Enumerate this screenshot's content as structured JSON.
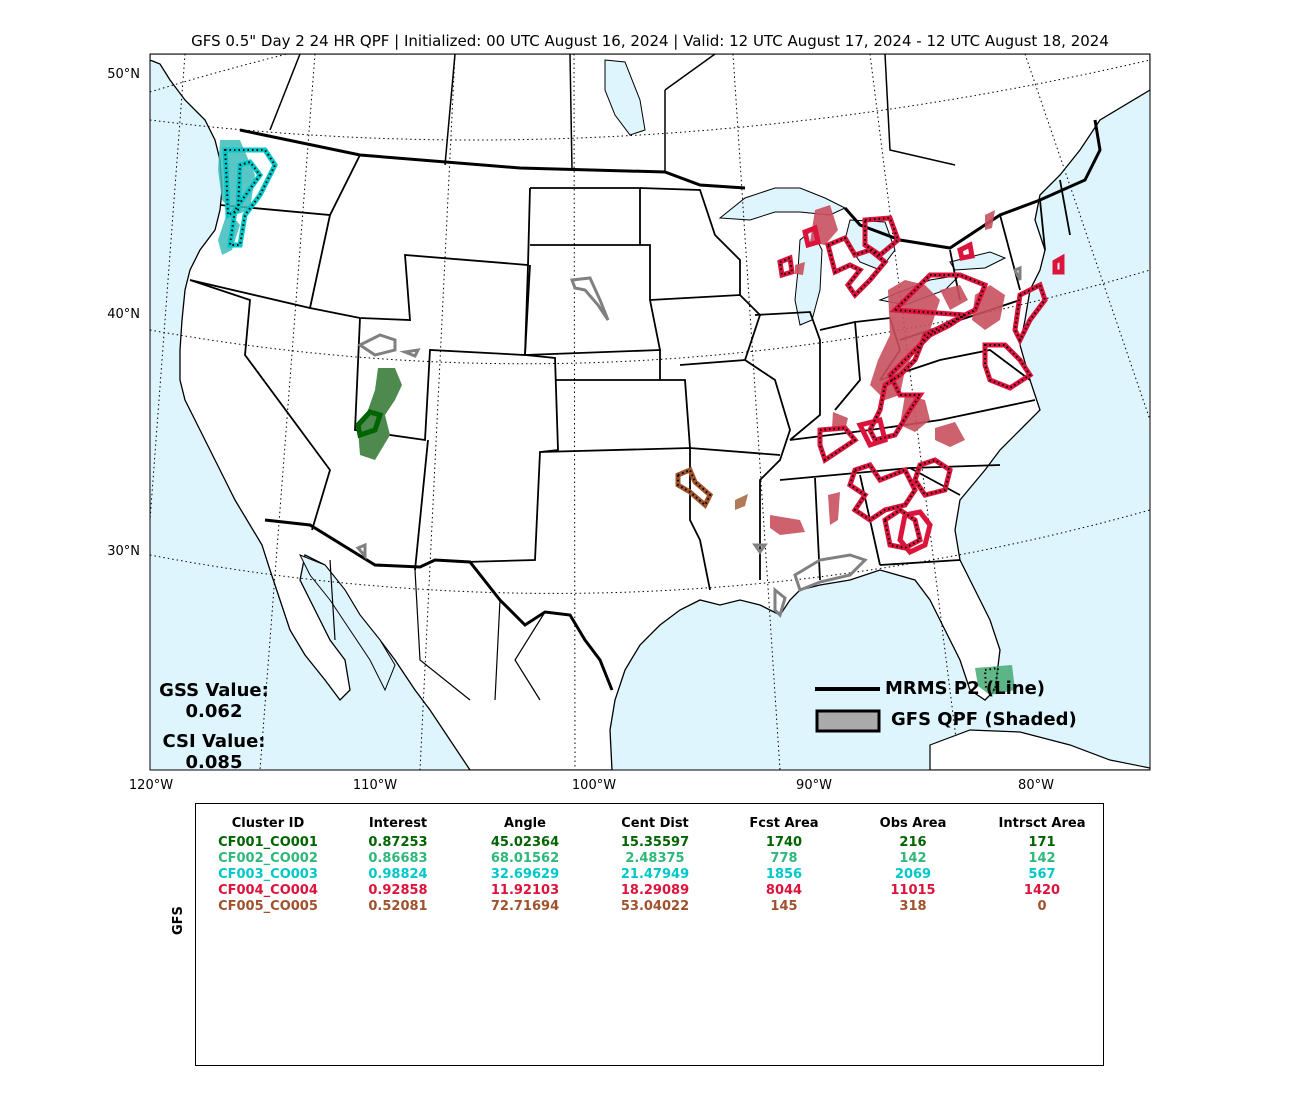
{
  "title": "GFS 0.5\" Day 2 24 HR QPF | Initialized: 00 UTC August 16, 2024 | Valid: 12 UTC August 17, 2024 - 12 UTC August 18, 2024",
  "lat_labels": [
    "50°N",
    "40°N",
    "30°N"
  ],
  "lon_labels": [
    "120°W",
    "110°W",
    "100°W",
    "90°W",
    "80°W"
  ],
  "stats": {
    "gss_label": "GSS Value:",
    "gss_value": "0.062",
    "csi_label": "CSI Value:",
    "csi_value": "0.085"
  },
  "legend": {
    "line_label": "MRMS P2 (Line)",
    "shaded_label": "GFS QPF (Shaded)"
  },
  "colors": {
    "ocean": "#dff5fe",
    "land": "#ffffff",
    "cluster1": "#006400",
    "cluster2": "#2e9e5e",
    "cluster3": "#00c8c8",
    "cluster4": "#dc143c",
    "cluster5": "#a0522d",
    "unmatched": "#808080"
  },
  "table": {
    "side_label": "GFS",
    "headers": [
      "Cluster ID",
      "Interest",
      "Angle",
      "Cent Dist",
      "Fcst Area",
      "Obs Area",
      "Intrsct Area"
    ],
    "rows": [
      {
        "color": "#006400",
        "cells": [
          "CF001_CO001",
          "0.87253",
          "45.02364",
          "15.35597",
          "1740",
          "216",
          "171"
        ]
      },
      {
        "color": "#2eb87a",
        "cells": [
          "CF002_CO002",
          "0.86683",
          "68.01562",
          "2.48375",
          "778",
          "142",
          "142"
        ]
      },
      {
        "color": "#00c8c8",
        "cells": [
          "CF003_CO003",
          "0.98824",
          "32.69629",
          "21.47949",
          "1856",
          "2069",
          "567"
        ]
      },
      {
        "color": "#dc143c",
        "cells": [
          "CF004_CO004",
          "0.92858",
          "11.92103",
          "18.29089",
          "8044",
          "11015",
          "1420"
        ]
      },
      {
        "color": "#a0522d",
        "cells": [
          "CF005_CO005",
          "0.52081",
          "72.71694",
          "53.04022",
          "145",
          "318",
          "0"
        ]
      }
    ]
  }
}
